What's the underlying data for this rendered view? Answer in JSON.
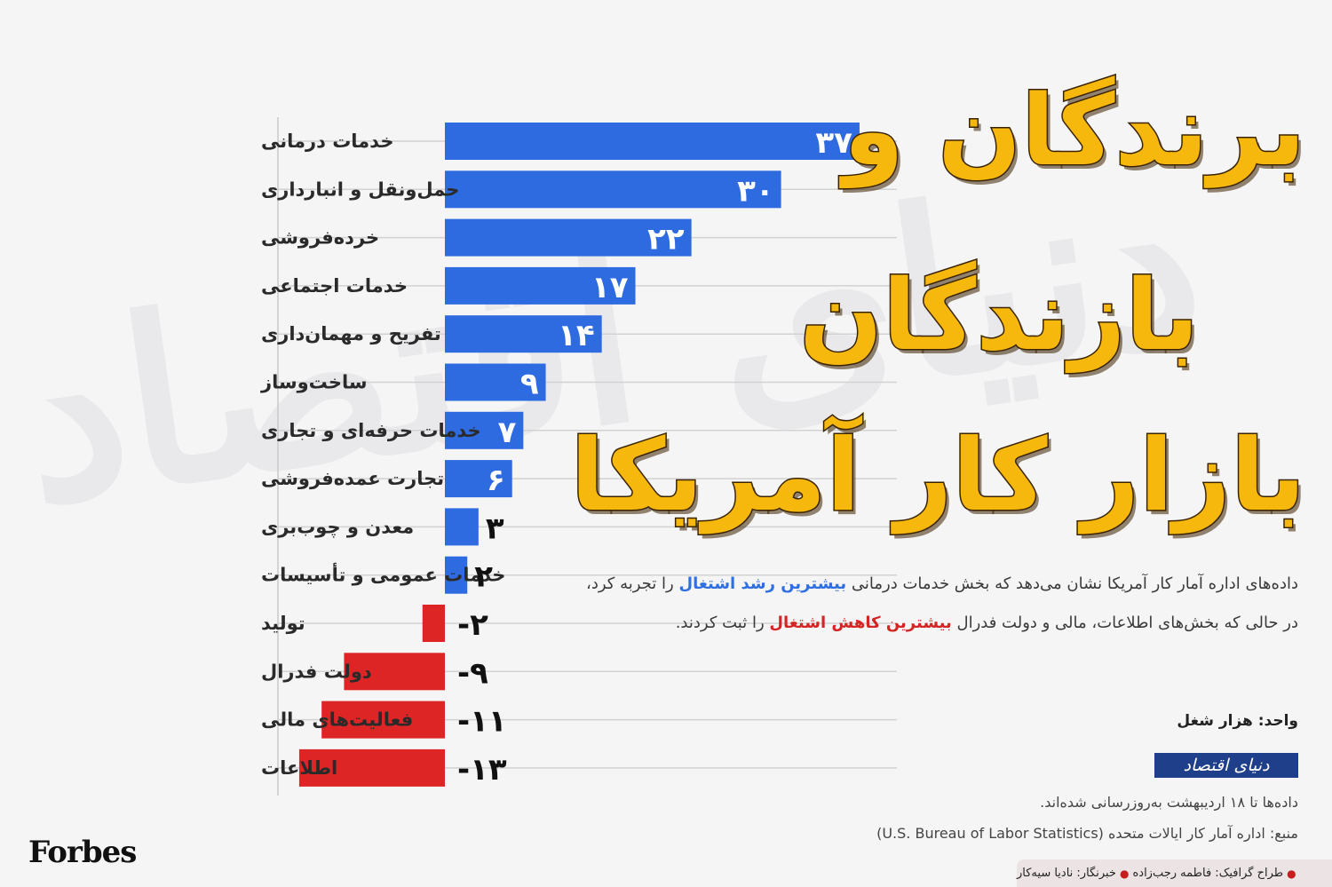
{
  "title": {
    "line1": "برندگان و",
    "line2": "بازندگان",
    "line3": "بازار کار آمریکا"
  },
  "description": {
    "line1_pre": "داده‌های اداره آمار کار آمریکا نشان می‌دهد که بخش خدمات درمانی",
    "line1_highlight": "بیشترین رشد اشتغال",
    "line1_post": "را تجربه کرد،",
    "line2_pre": "در حالی که بخش‌های اطلاعات، مالی و دولت فدرال",
    "line2_highlight": "بیشترین کاهش اشتغال",
    "line2_post": "را ثبت کردند."
  },
  "unit": "واحد: هزار شغل",
  "logo_text": "دنیای اقتصاد",
  "updated": "داده‌ها تا ۱۸ اردیبهشت به‌روزرسانی شده‌اند.",
  "source": "منبع: اداره آمار کار ایالات متحده (U.S. Bureau of Labor Statistics)",
  "forbes": "Forbes",
  "credits": {
    "designer": "طراح گرافیک: فاطمه رجب‌زاده",
    "reporter": "خبرنگار: نادیا سیه‌کار"
  },
  "colors": {
    "positive": "#2f6be0",
    "negative": "#dd2525",
    "title": "#f6b80c"
  },
  "chart_data": {
    "type": "bar",
    "orientation": "horizontal",
    "categories": [
      "خدمات درمانی",
      "حمل‌ونقل و انبارداری",
      "خرده‌فروشی",
      "خدمات اجتماعی",
      "تفریح و مهمان‌داری",
      "ساخت‌وساز",
      "خدمات حرفه‌ای و تجاری",
      "تجارت عمده‌فروشی",
      "معدن و چوب‌بری",
      "خدمات عمومی و تأسیسات",
      "تولید",
      "دولت فدرال",
      "فعالیت‌های مالی",
      "اطلاعات"
    ],
    "values": [
      37,
      30,
      22,
      17,
      14,
      9,
      7,
      6,
      3,
      2,
      -2,
      -9,
      -11,
      -13
    ],
    "value_labels": [
      "۳۷",
      "۳۰",
      "۲۲",
      "۱۷",
      "۱۴",
      "۹",
      "۷",
      "۶",
      "۳",
      "۲",
      "-۲",
      "-۹",
      "-۱۱",
      "-۱۳"
    ],
    "xlim": [
      -13,
      37
    ],
    "grid": true,
    "legend": false
  }
}
